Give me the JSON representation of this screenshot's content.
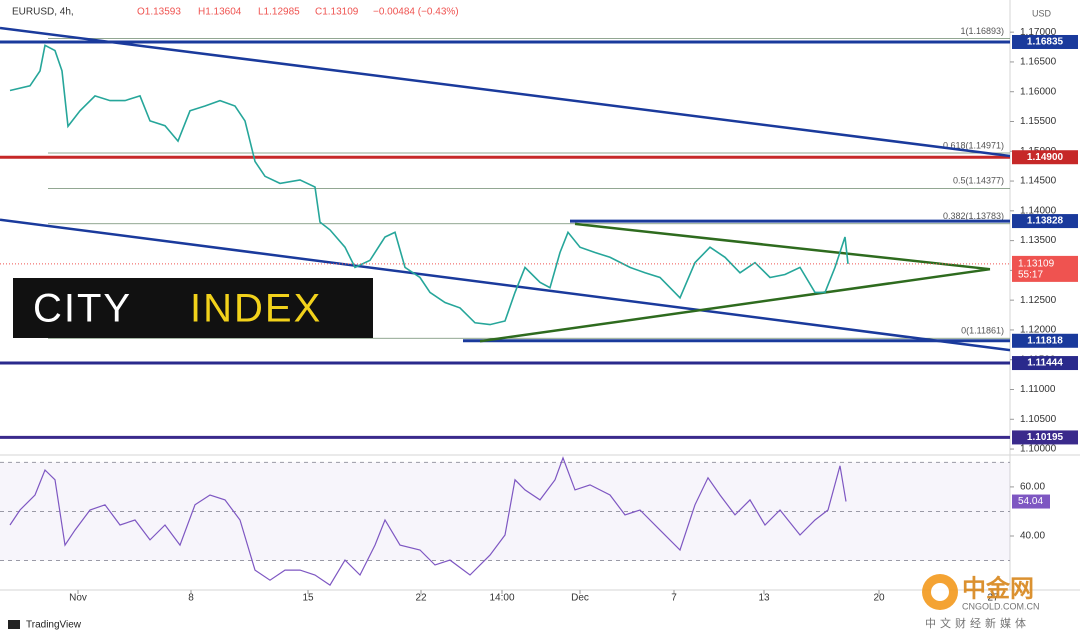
{
  "chart_data": [
    {
      "type": "line",
      "title": "EURUSD, 4h,",
      "ohlc": [
        "O1.13593",
        "H1.13604",
        "L1.12985",
        "C1.13109"
      ],
      "change": "−0.00484 (−0.43%)",
      "currency": "USD",
      "color": "#26a69a",
      "x": [
        1,
        3,
        4,
        4.5,
        5.5,
        6.2,
        6.8,
        8,
        9.5,
        11,
        12.5,
        14,
        15,
        16.5,
        17.8,
        19,
        20.5,
        22,
        23.5,
        24.5,
        25.5,
        26.5,
        28,
        30,
        31.5,
        32,
        33,
        34.5,
        35.5,
        37,
        38.5,
        39.5,
        40.5,
        42,
        43,
        44.5,
        46,
        47.5,
        49,
        50.5,
        51.5,
        52.5,
        54,
        55,
        56,
        56.8,
        58,
        59.5,
        61,
        63,
        64.5,
        66,
        68,
        69.5,
        71,
        72.5,
        74,
        75.5,
        77,
        78.5,
        80,
        81.5,
        82.5,
        83.5,
        84.5,
        84.8
      ],
      "values": [
        1.1602,
        1.161,
        1.1635,
        1.1678,
        1.1669,
        1.1635,
        1.1542,
        1.1568,
        1.1593,
        1.1585,
        1.1585,
        1.1593,
        1.1551,
        1.1543,
        1.1517,
        1.1568,
        1.1576,
        1.1585,
        1.1576,
        1.1551,
        1.1483,
        1.1458,
        1.1446,
        1.1452,
        1.144,
        1.1381,
        1.1368,
        1.1339,
        1.1305,
        1.1317,
        1.1356,
        1.1364,
        1.1305,
        1.1288,
        1.1263,
        1.1246,
        1.1237,
        1.1212,
        1.1209,
        1.1215,
        1.1263,
        1.1305,
        1.128,
        1.1271,
        1.133,
        1.1364,
        1.1339,
        1.133,
        1.1322,
        1.1305,
        1.1296,
        1.1288,
        1.1254,
        1.1313,
        1.1339,
        1.1322,
        1.1296,
        1.1313,
        1.1288,
        1.1293,
        1.1305,
        1.1263,
        1.1263,
        1.1305,
        1.1356,
        1.1311
      ],
      "xlim": [
        0,
        101
      ],
      "xticks": [
        {
          "value": 7.8,
          "label": "Nov"
        },
        {
          "value": 19.1,
          "label": "8"
        },
        {
          "value": 30.8,
          "label": "15"
        },
        {
          "value": 42.1,
          "label": "22"
        },
        {
          "value": 50.2,
          "label": "14:00"
        },
        {
          "value": 58,
          "label": "Dec"
        },
        {
          "value": 67.4,
          "label": "7"
        },
        {
          "value": 76.4,
          "label": "13"
        },
        {
          "value": 87.9,
          "label": "20"
        },
        {
          "value": 99.3,
          "label": "27"
        }
      ],
      "ylim": [
        1.099,
        1.1754
      ],
      "yticks": [
        {
          "value": 1.1,
          "label": "1.10000"
        },
        {
          "value": 1.105,
          "label": "1.10500"
        },
        {
          "value": 1.11,
          "label": "1.11000"
        },
        {
          "value": 1.115,
          "label": "1.11500"
        },
        {
          "value": 1.12,
          "label": "1.12000"
        },
        {
          "value": 1.125,
          "label": "1.12500"
        },
        {
          "value": 1.13,
          "label": "1.13000"
        },
        {
          "value": 1.135,
          "label": "1.13500"
        },
        {
          "value": 1.14,
          "label": "1.14000"
        },
        {
          "value": 1.145,
          "label": "1.14500"
        },
        {
          "value": 1.15,
          "label": "1.15000"
        },
        {
          "value": 1.155,
          "label": "1.15500"
        },
        {
          "value": 1.16,
          "label": "1.16000"
        },
        {
          "value": 1.165,
          "label": "1.16500"
        },
        {
          "value": 1.17,
          "label": "1.17000"
        }
      ],
      "grid": false,
      "levels": [
        1.16835,
        {
          "value": 1.149,
          "label": "1.14900"
        },
        1.13828,
        1.11818,
        1.11444,
        1.10195
      ],
      "level_colors": [
        "#1a3a9c",
        "#c62828",
        "#1a3a9c",
        "#1a3a9c",
        "#2a2a8c",
        "#3a2a8c"
      ],
      "level_x_start": [
        0,
        0,
        57,
        46.3,
        0,
        0
      ],
      "fib_levels": [
        {
          "value": 1.16893,
          "label": "1(1.16893)"
        },
        {
          "value": 1.14971,
          "label": "0.618(1.14971)"
        },
        {
          "value": 1.14377,
          "label": "0.5(1.14377)"
        },
        {
          "value": 1.13783,
          "label": "0.382(1.13783)"
        },
        {
          "value": 1.11861,
          "label": "0(1.11861)"
        }
      ],
      "fib_x_start": 4.8,
      "trendlines": [
        {
          "points": [
            [
              0,
              1.1707
            ],
            [
              101,
              1.1492
            ]
          ],
          "color": "#1a3a9c"
        },
        {
          "points": [
            [
              0,
              1.1385
            ],
            [
              101,
              1.1166
            ]
          ],
          "color": "#1a3a9c"
        },
        {
          "points": [
            [
              57.5,
              1.1378
            ],
            [
              99,
              1.1302
            ]
          ],
          "color": "#2e6b1e"
        },
        {
          "points": [
            [
              48,
              1.1181
            ],
            [
              99,
              1.1302
            ]
          ],
          "color": "#2e6b1e"
        }
      ],
      "last": {
        "value": 1.13109,
        "timer": "55:17"
      }
    },
    {
      "type": "line",
      "color": "#7e57c2",
      "x": [
        1,
        2,
        3.5,
        4.5,
        5.5,
        6.5,
        7.5,
        9,
        10.5,
        12,
        13.5,
        15,
        16.5,
        18,
        19.5,
        21,
        22.5,
        24,
        25.5,
        27,
        28.5,
        30,
        31.5,
        33,
        34.5,
        36,
        37.5,
        38.5,
        40,
        42,
        43.5,
        45,
        47,
        49,
        50.5,
        51.5,
        52.5,
        54,
        55.5,
        56.3,
        57.5,
        59,
        61,
        62.5,
        64,
        66,
        68,
        69.5,
        70.8,
        72,
        73.5,
        75,
        76.5,
        78,
        80,
        81.5,
        82.8,
        84,
        84.6
      ],
      "values": [
        44.5,
        50.6,
        56.7,
        66.9,
        62.9,
        36.3,
        42.4,
        50.6,
        52.7,
        44.5,
        46.5,
        38.4,
        44.5,
        36.3,
        52.7,
        56.7,
        54.7,
        46.5,
        26.1,
        22,
        26.1,
        26.1,
        24.1,
        20,
        30.2,
        24.1,
        36.3,
        46.5,
        36.3,
        34.3,
        28.2,
        30.2,
        24.1,
        32.2,
        40.4,
        62.9,
        58.8,
        54.7,
        62.9,
        71.8,
        58.8,
        60.8,
        56.7,
        48.6,
        50.6,
        42.4,
        34.3,
        52.7,
        63.7,
        56.7,
        48.6,
        54.7,
        44.5,
        50.6,
        40.4,
        46.5,
        50.6,
        68.6,
        54.04
      ],
      "xlim": [
        0,
        101
      ],
      "ylim": [
        18,
        73
      ],
      "yticks": [
        {
          "value": 40,
          "label": "40.00"
        },
        {
          "value": 60,
          "label": "60.00"
        }
      ],
      "bands": [
        30,
        50,
        70
      ]
    }
  ],
  "branding": {
    "logo": [
      "CITY",
      "INDEX"
    ],
    "platform": "TradingView"
  },
  "watermark": {
    "name": "中金网",
    "site": "CNGOLD.COM.CN",
    "slogan": "中文财经新媒体"
  }
}
